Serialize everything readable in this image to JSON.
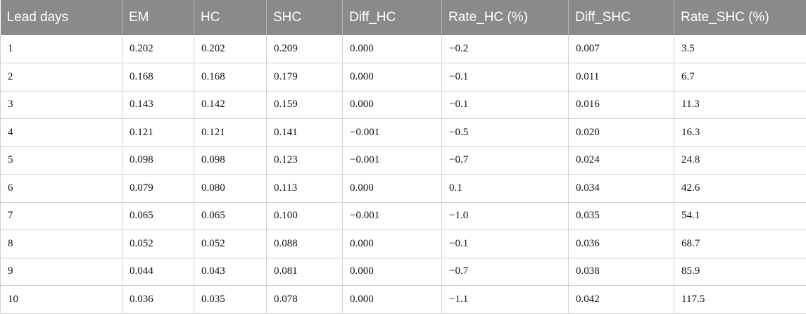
{
  "table": {
    "headers": [
      "Lead days",
      "EM",
      "HC",
      "SHC",
      "Diff_HC",
      "Rate_HC (%)",
      "Diff_SHC",
      "Rate_SHC (%)"
    ],
    "rows": [
      [
        "1",
        "0.202",
        "0.202",
        "0.209",
        "0.000",
        "−0.2",
        "0.007",
        "3.5"
      ],
      [
        "2",
        "0.168",
        "0.168",
        "0.179",
        "0.000",
        "−0.1",
        "0.011",
        "6.7"
      ],
      [
        "3",
        "0.143",
        "0.142",
        "0.159",
        "0.000",
        "−0.1",
        "0.016",
        "11.3"
      ],
      [
        "4",
        "0.121",
        "0.121",
        "0.141",
        "−0.001",
        "−0.5",
        "0.020",
        "16.3"
      ],
      [
        "5",
        "0.098",
        "0.098",
        "0.123",
        "−0.001",
        "−0.7",
        "0.024",
        "24.8"
      ],
      [
        "6",
        "0.079",
        "0.080",
        "0.113",
        "0.000",
        "0.1",
        "0.034",
        "42.6"
      ],
      [
        "7",
        "0.065",
        "0.065",
        "0.100",
        "−0.001",
        "−1.0",
        "0.035",
        "54.1"
      ],
      [
        "8",
        "0.052",
        "0.052",
        "0.088",
        "0.000",
        "−0.1",
        "0.036",
        "68.7"
      ],
      [
        "9",
        "0.044",
        "0.043",
        "0.081",
        "0.000",
        "−0.7",
        "0.038",
        "85.9"
      ],
      [
        "10",
        "0.036",
        "0.035",
        "0.078",
        "0.000",
        "−1.1",
        "0.042",
        "117.5"
      ]
    ]
  }
}
